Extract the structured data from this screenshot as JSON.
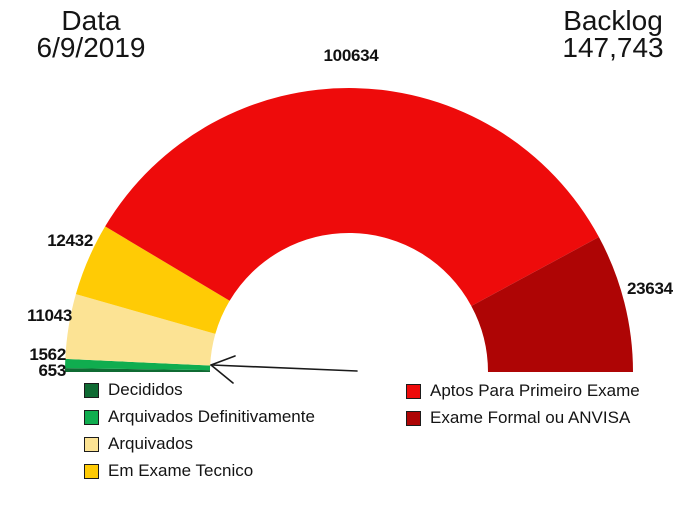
{
  "header": {
    "date_label": "Data",
    "date_value": "6/9/2019",
    "backlog_label": "Backlog",
    "backlog_value": "147,743"
  },
  "chart_data": {
    "type": "pie",
    "variant": "semi-donut-gauge",
    "title": "",
    "start_angle_deg": 180,
    "end_angle_deg": 0,
    "legend_position": "bottom",
    "segments": [
      {
        "name": "Decididos",
        "value": 653,
        "color": "#0f6b33"
      },
      {
        "name": "Arquivados Definitivamente",
        "value": 1562,
        "color": "#10ad4f"
      },
      {
        "name": "Arquivados",
        "value": 11043,
        "color": "#fce394"
      },
      {
        "name": "Em Exame Tecnico",
        "value": 12432,
        "color": "#ffcb05"
      },
      {
        "name": "Aptos Para Primeiro Exame",
        "value": 100634,
        "color": "#ee0b0b"
      },
      {
        "name": "Exame Formal ou ANVISA",
        "value": 23634,
        "color": "#ae0505"
      }
    ],
    "annotations": [
      {
        "type": "arrow",
        "target_segment": "Arquivados Definitivamente"
      }
    ]
  },
  "legend": {
    "left_column_indices": [
      0,
      1,
      2,
      3
    ],
    "right_column_indices": [
      4,
      5
    ]
  }
}
